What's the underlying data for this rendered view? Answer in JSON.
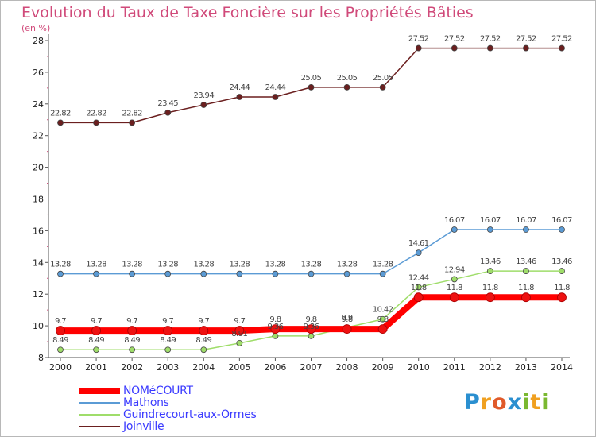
{
  "title": "Evolution du Taux de Taxe Foncière sur les Propriétés Bâties",
  "unit_label": "(en %)",
  "logo": {
    "letters": [
      "P",
      "r",
      "o",
      "x",
      "i",
      "t",
      "i"
    ],
    "colors": [
      "#2a8fd0",
      "#f0a020",
      "#e05a2a",
      "#2a8fd0",
      "#7ab830",
      "#f0a020",
      "#7ab830"
    ]
  },
  "chart_data": {
    "type": "line",
    "title": "Evolution du Taux de Taxe Foncière sur les Propriétés Bâties",
    "ylabel": "(en %)",
    "xlabel": "",
    "ylim": [
      8,
      28
    ],
    "yticks": [
      8,
      10,
      12,
      14,
      16,
      18,
      20,
      22,
      24,
      26,
      28
    ],
    "x": [
      "2000",
      "2001",
      "2002",
      "2003",
      "2004",
      "2005",
      "2006",
      "2007",
      "2008",
      "2009",
      "2010",
      "2011",
      "2012",
      "2013",
      "2014"
    ],
    "series": [
      {
        "name": "Joinville",
        "color": "#6b1f1f",
        "width": 1.5,
        "marker": 3.5,
        "values": [
          22.82,
          22.82,
          22.82,
          23.45,
          23.94,
          24.44,
          24.44,
          25.05,
          25.05,
          25.05,
          27.52,
          27.52,
          27.52,
          27.52,
          27.52
        ],
        "labels": [
          "22.82",
          "22.82",
          "22.82",
          "23.45",
          "23.94",
          "24.44",
          "24.44",
          "25.05",
          "25.05",
          "25.05",
          "27.52",
          "27.52",
          "27.52",
          "27.52",
          "27.52"
        ]
      },
      {
        "name": "Mathons",
        "color": "#5b9bd5",
        "width": 1.5,
        "marker": 3.5,
        "values": [
          13.28,
          13.28,
          13.28,
          13.28,
          13.28,
          13.28,
          13.28,
          13.28,
          13.28,
          13.28,
          14.61,
          16.07,
          16.07,
          16.07,
          16.07
        ],
        "labels": [
          "13.28",
          "13.28",
          "13.28",
          "13.28",
          "13.28",
          "13.28",
          "13.28",
          "13.28",
          "13.28",
          "13.28",
          "14.61",
          "16.07",
          "16.07",
          "16.07",
          "16.07"
        ]
      },
      {
        "name": "Guindrecourt-aux-Ormes",
        "color": "#9fdd6a",
        "width": 1.5,
        "marker": 3.5,
        "values": [
          8.49,
          8.49,
          8.49,
          8.49,
          8.49,
          8.91,
          9.36,
          9.36,
          9.9,
          10.42,
          12.44,
          12.94,
          13.46,
          13.46,
          13.46
        ],
        "labels": [
          "8.49",
          "8.49",
          "8.49",
          "8.49",
          "8.49",
          "8.91",
          "9.36",
          "9.36",
          "9.9",
          "10.42",
          "12.44",
          "12.94",
          "13.46",
          "13.46",
          "13.46"
        ]
      },
      {
        "name": "NOMéCOURT",
        "color": "#ff0000",
        "width": 8,
        "marker": 5.5,
        "values": [
          9.7,
          9.7,
          9.7,
          9.7,
          9.7,
          9.7,
          9.8,
          9.8,
          9.8,
          9.8,
          11.8,
          11.8,
          11.8,
          11.8,
          11.8
        ],
        "labels": [
          "9.7",
          "9.7",
          "9.7",
          "9.7",
          "9.7",
          "9.7",
          "9.8",
          "9.8",
          "9.8",
          "9.8",
          "11.8",
          "11.8",
          "11.8",
          "11.8",
          "11.8"
        ]
      }
    ],
    "legend": [
      "NOMéCOURT",
      "Mathons",
      "Guindrecourt-aux-Ormes",
      "Joinville"
    ],
    "grid": false
  }
}
